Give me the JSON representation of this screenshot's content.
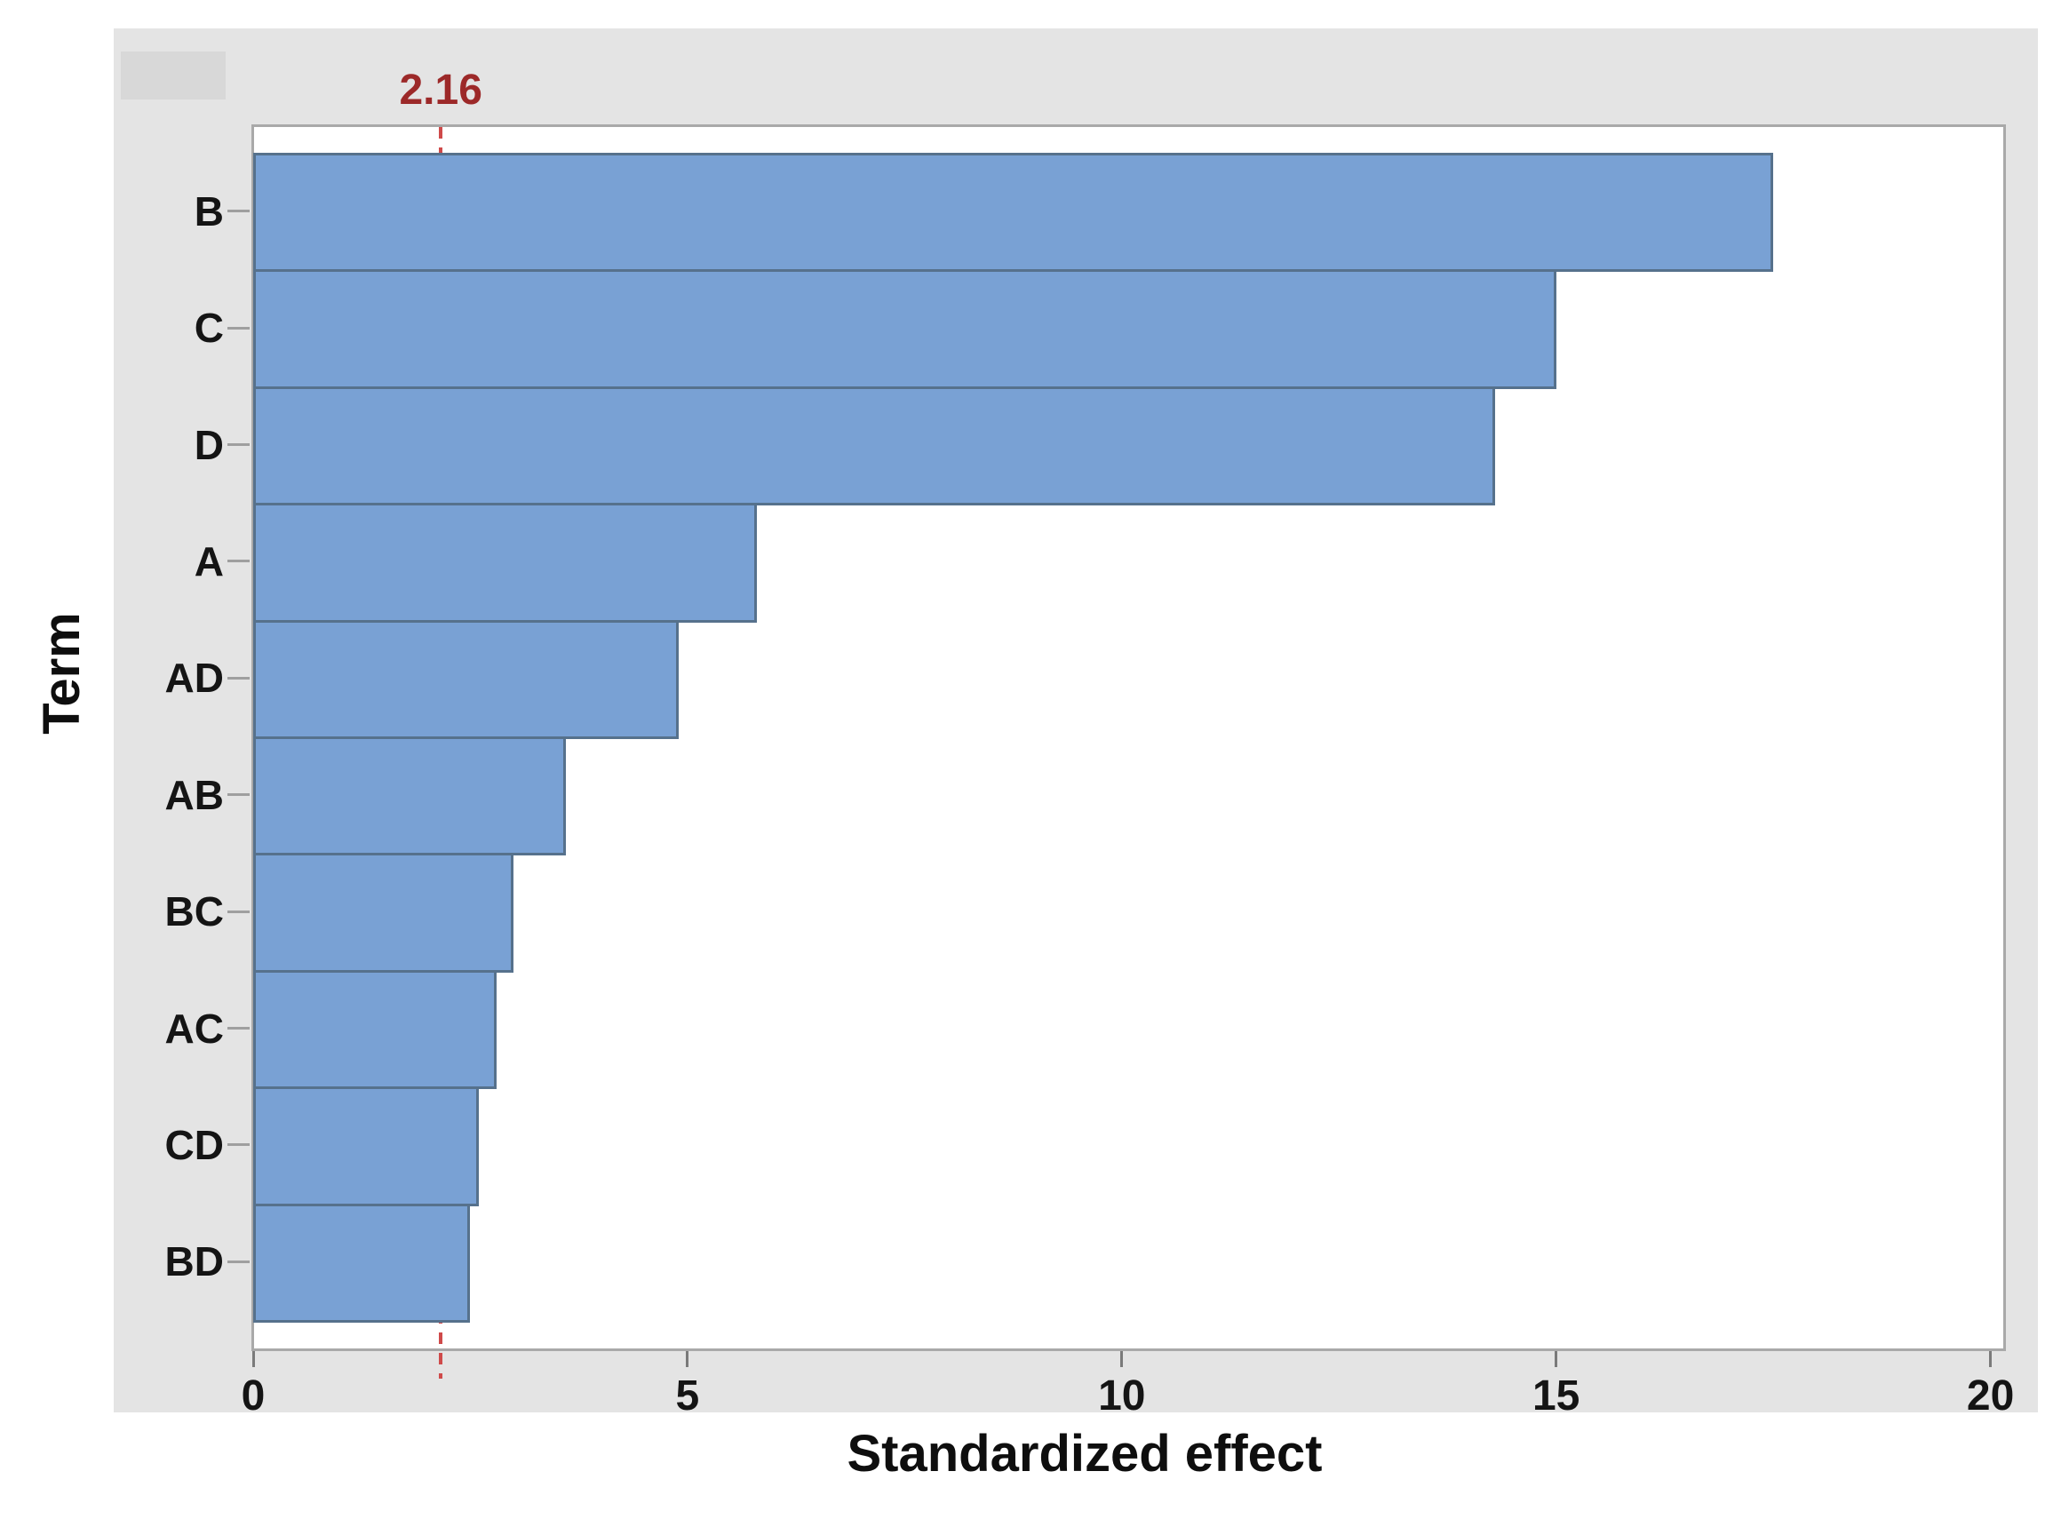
{
  "chart_data": {
    "type": "bar",
    "orientation": "horizontal",
    "title": "",
    "categories": [
      "B",
      "C",
      "D",
      "A",
      "AD",
      "AB",
      "BC",
      "AC",
      "CD",
      "BD"
    ],
    "values": [
      17.5,
      15.0,
      14.3,
      5.8,
      4.9,
      3.6,
      3.0,
      2.8,
      2.6,
      2.5
    ],
    "xlabel": "Standardized effect",
    "ylabel": "Term",
    "xlim": [
      0,
      20
    ],
    "x_ticks": [
      0,
      5,
      10,
      15,
      20
    ],
    "grid": false,
    "legend": false,
    "reference_line": {
      "value": 2.16,
      "label": "2.16"
    },
    "colors": {
      "bar_fill": "#79a1d4",
      "bar_border": "#56718c",
      "reference_line": "#cf4a4a",
      "reference_label": "#9c2929",
      "figure_background": "#e4e4e4",
      "plot_background": "#ffffff",
      "plot_border": "#a9a9a9",
      "axis_text": "#141414"
    }
  }
}
